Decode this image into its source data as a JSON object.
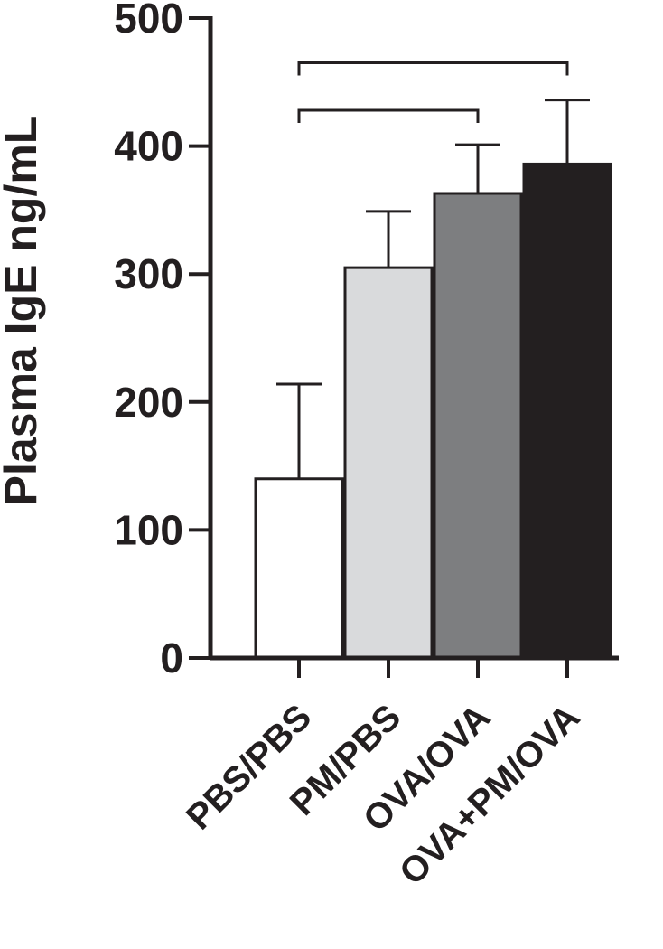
{
  "chart_data": {
    "type": "bar",
    "title": "",
    "xlabel": "",
    "ylabel": "Plasma IgE ng/mL",
    "ylim": [
      0,
      500
    ],
    "yticks": [
      0,
      100,
      200,
      300,
      400,
      500
    ],
    "grid": false,
    "categories": [
      "PBS/PBS",
      "PM/PBS",
      "OVA/OVA",
      "OVA+PM/OVA"
    ],
    "values": [
      140,
      305,
      363,
      386
    ],
    "error_upper": [
      74,
      44,
      38,
      50
    ],
    "bar_colors": [
      "#ffffff",
      "#d9dadc",
      "#7d7e80",
      "#231f20"
    ],
    "significance_brackets": [
      {
        "from": "PBS/PBS",
        "to": "OVA/OVA",
        "y": 428
      },
      {
        "from": "PBS/PBS",
        "to": "OVA+PM/OVA",
        "y": 465
      }
    ]
  }
}
